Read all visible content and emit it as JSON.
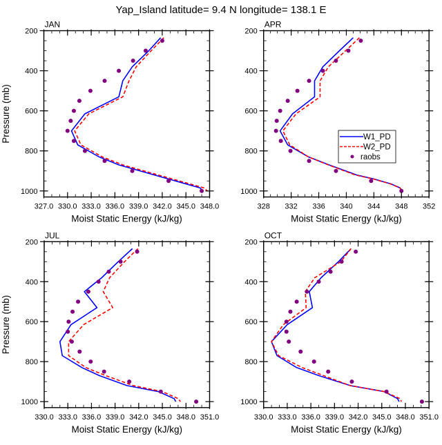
{
  "title": "Yap_Island  latitude= 9.4 N longitude= 138.1 E",
  "legend": {
    "entries": [
      {
        "label": "W1_PD",
        "color": "#0000ff",
        "style": "solid"
      },
      {
        "label": "W2_PD",
        "color": "#ff0000",
        "style": "dashed"
      },
      {
        "label": "raobs",
        "color": "#800080",
        "style": "marker"
      }
    ]
  },
  "chart_data": [
    {
      "type": "line",
      "panel_label": "JAN",
      "xlabel": "Moist Static Energy (kJ/kg)",
      "ylabel": "Pressure (mb)",
      "xlim": [
        327,
        348
      ],
      "ylim": [
        200,
        1030
      ],
      "y_reversed": true,
      "xticks": [
        327,
        330,
        333,
        336,
        339,
        342,
        345,
        348
      ],
      "xtick_labels": [
        "327.0",
        "330.0",
        "333.0",
        "336.0",
        "339.0",
        "342.0",
        "345.0",
        "348.0"
      ],
      "x_minor_step": 1,
      "yticks": [
        200,
        400,
        600,
        800,
        1000
      ],
      "ytick_labels": [
        "200",
        "400",
        "600",
        "800",
        "1000"
      ],
      "y_minor_step": 50,
      "legend": false,
      "series": [
        {
          "name": "W1_PD",
          "p": [
            235,
            300,
            380,
            450,
            530,
            615,
            700,
            770,
            830,
            870,
            920,
            985,
            1000
          ],
          "mse": [
            341.8,
            340.3,
            338.2,
            337.0,
            336.5,
            332.2,
            330.5,
            331.3,
            334.0,
            336.5,
            341.0,
            346.8,
            347.1
          ]
        },
        {
          "name": "W2_PD",
          "p": [
            235,
            300,
            380,
            450,
            530,
            615,
            700,
            770,
            830,
            870,
            920,
            985,
            1000
          ],
          "mse": [
            342.2,
            340.6,
            338.7,
            337.8,
            337.0,
            332.7,
            330.9,
            331.7,
            334.4,
            337.0,
            341.5,
            347.3,
            347.7
          ]
        },
        {
          "name": "raobs",
          "p": [
            250,
            300,
            350,
            400,
            450,
            500,
            550,
            600,
            650,
            700,
            750,
            800,
            850,
            900,
            950,
            1000
          ],
          "mse": [
            342.0,
            339.9,
            338.3,
            336.5,
            334.7,
            332.9,
            331.5,
            330.8,
            330.4,
            330.0,
            330.8,
            332.2,
            334.7,
            338.2,
            342.8,
            347.0
          ]
        }
      ]
    },
    {
      "type": "line",
      "panel_label": "APR",
      "xlabel": "Moist Static Energy (kJ/kg)",
      "ylabel": "",
      "xlim": [
        328,
        352
      ],
      "ylim": [
        200,
        1030
      ],
      "y_reversed": true,
      "xticks": [
        328,
        332,
        336,
        340,
        344,
        348,
        352
      ],
      "xtick_labels": [
        "328",
        "332",
        "336",
        "340",
        "344",
        "348",
        "352"
      ],
      "x_minor_step": 1,
      "yticks": [
        200,
        400,
        600,
        800,
        1000
      ],
      "ytick_labels": [
        "200",
        "400",
        "600",
        "800",
        "1000"
      ],
      "y_minor_step": 50,
      "legend": true,
      "legend_position": "center-right",
      "series": [
        {
          "name": "W1_PD",
          "p": [
            235,
            300,
            380,
            450,
            530,
            615,
            700,
            770,
            830,
            870,
            920,
            940,
            965,
            985,
            1000
          ],
          "mse": [
            341.0,
            339.0,
            336.6,
            335.4,
            335.4,
            332.2,
            330.4,
            331.5,
            334.5,
            337.5,
            341.5,
            344.0,
            346.5,
            347.8,
            348.1
          ]
        },
        {
          "name": "W2_PD",
          "p": [
            235,
            300,
            380,
            450,
            530,
            615,
            700,
            770,
            830,
            870,
            920,
            940,
            965,
            985,
            1000
          ],
          "mse": [
            341.9,
            339.9,
            337.4,
            336.2,
            336.2,
            332.7,
            330.8,
            331.8,
            334.5,
            337.4,
            341.3,
            343.9,
            346.4,
            347.8,
            348.0
          ]
        },
        {
          "name": "raobs",
          "p": [
            250,
            300,
            350,
            400,
            450,
            500,
            550,
            600,
            650,
            700,
            750,
            800,
            850,
            900,
            950,
            1000
          ],
          "mse": [
            342.1,
            340.3,
            338.5,
            336.6,
            334.6,
            332.9,
            331.5,
            330.4,
            329.9,
            329.8,
            330.5,
            331.9,
            334.6,
            338.5,
            343.6,
            348.0
          ]
        }
      ]
    },
    {
      "type": "line",
      "panel_label": "JUL",
      "xlabel": "Moist Static Energy (kJ/kg)",
      "ylabel": "Pressure (mb)",
      "xlim": [
        330,
        351
      ],
      "ylim": [
        200,
        1030
      ],
      "y_reversed": true,
      "xticks": [
        330,
        333,
        336,
        339,
        342,
        345,
        348,
        351
      ],
      "xtick_labels": [
        "330.0",
        "333.0",
        "336.0",
        "339.0",
        "342.0",
        "345.0",
        "348.0",
        "351.0"
      ],
      "x_minor_step": 1,
      "yticks": [
        200,
        400,
        600,
        800,
        1000
      ],
      "ytick_labels": [
        "200",
        "400",
        "600",
        "800",
        "1000"
      ],
      "y_minor_step": 50,
      "legend": false,
      "series": [
        {
          "name": "W1_PD",
          "p": [
            235,
            300,
            380,
            450,
            530,
            615,
            700,
            770,
            830,
            870,
            920,
            950,
            985,
            1000
          ],
          "mse": [
            341.2,
            339.4,
            337.3,
            335.1,
            336.7,
            333.4,
            332.0,
            332.3,
            334.8,
            337.0,
            340.5,
            344.5,
            346.5,
            346.7
          ]
        },
        {
          "name": "W2_PD",
          "p": [
            235,
            300,
            380,
            450,
            530,
            615,
            700,
            770,
            830,
            870,
            920,
            950,
            985,
            1000
          ],
          "mse": [
            341.9,
            340.2,
            338.3,
            337.5,
            338.7,
            335.0,
            333.1,
            333.1,
            335.3,
            337.8,
            341.3,
            345.0,
            347.0,
            347.3
          ]
        },
        {
          "name": "raobs",
          "p": [
            250,
            300,
            350,
            400,
            450,
            500,
            550,
            600,
            650,
            700,
            750,
            800,
            850,
            900,
            950,
            1000
          ],
          "mse": [
            341.8,
            339.7,
            338.2,
            336.9,
            335.6,
            334.3,
            333.6,
            333.1,
            333.0,
            333.5,
            334.5,
            335.9,
            337.6,
            340.8,
            344.8,
            349.3
          ]
        }
      ]
    },
    {
      "type": "line",
      "panel_label": "OCT",
      "xlabel": "Moist Static Energy (kJ/kg)",
      "ylabel": "",
      "xlim": [
        330,
        351
      ],
      "ylim": [
        200,
        1030
      ],
      "y_reversed": true,
      "xticks": [
        330,
        333,
        336,
        339,
        342,
        345,
        348,
        351
      ],
      "xtick_labels": [
        "330.0",
        "333.0",
        "336.0",
        "339.0",
        "342.0",
        "345.0",
        "348.0",
        "351.0"
      ],
      "x_minor_step": 1,
      "yticks": [
        200,
        400,
        600,
        800,
        1000
      ],
      "ytick_labels": [
        "200",
        "400",
        "600",
        "800",
        "1000"
      ],
      "y_minor_step": 50,
      "legend": false,
      "series": [
        {
          "name": "W1_PD",
          "p": [
            235,
            300,
            380,
            450,
            530,
            615,
            700,
            770,
            830,
            870,
            920,
            950,
            985,
            1000
          ],
          "mse": [
            341.1,
            339.5,
            337.3,
            335.8,
            336.2,
            333.0,
            331.0,
            331.7,
            334.2,
            337.0,
            341.0,
            345.3,
            347.0,
            347.2
          ]
        },
        {
          "name": "W2_PD",
          "p": [
            235,
            300,
            380,
            450,
            530,
            615,
            700,
            770,
            830,
            870,
            920,
            950,
            985,
            1000
          ],
          "mse": [
            341.1,
            339.8,
            336.5,
            335.3,
            335.4,
            332.5,
            331.0,
            331.9,
            334.9,
            337.6,
            341.0,
            345.3,
            347.3,
            347.5
          ]
        },
        {
          "name": "raobs",
          "p": [
            250,
            300,
            350,
            400,
            450,
            500,
            550,
            600,
            650,
            700,
            750,
            800,
            850,
            900,
            950,
            1000
          ],
          "mse": [
            341.7,
            339.9,
            338.5,
            337.0,
            335.5,
            334.2,
            333.4,
            332.9,
            332.9,
            333.2,
            334.7,
            336.4,
            338.2,
            341.2,
            345.6,
            350.1
          ]
        }
      ]
    }
  ]
}
